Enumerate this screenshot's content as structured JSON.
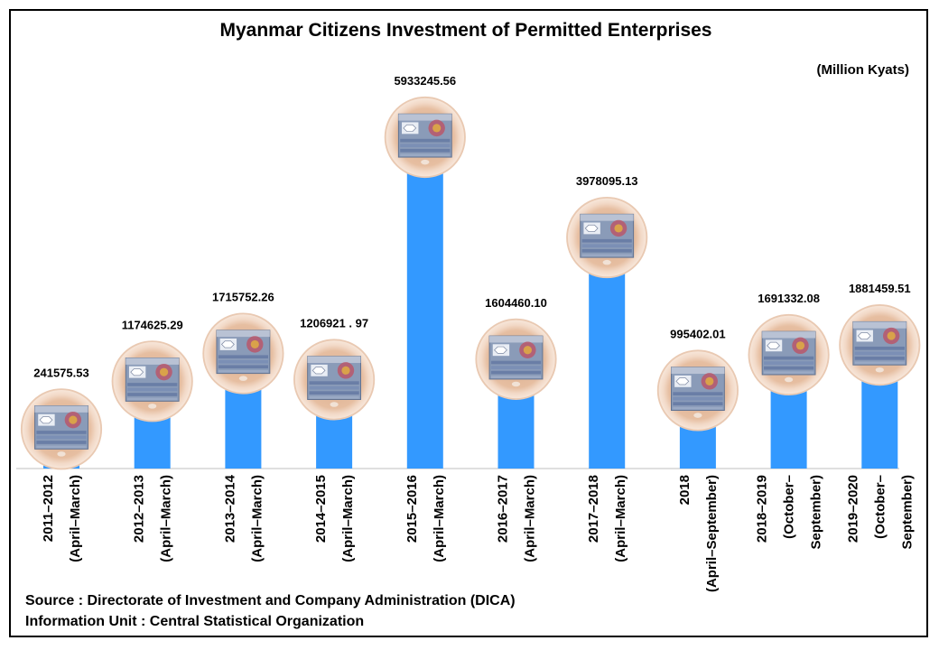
{
  "chart_data": {
    "type": "bar",
    "title": "Myanmar Citizens Investment of Permitted Enterprises",
    "unit_label": "(Million Kyats)",
    "categories": [
      [
        "2011–2012",
        "(April–March)"
      ],
      [
        "2012–2013",
        "(April–March)"
      ],
      [
        "2013–2014",
        "(April–March)"
      ],
      [
        "2014–2015",
        "(April–March)"
      ],
      [
        "2015–2016",
        "(April–March)"
      ],
      [
        "2016–2017",
        "(April–March)"
      ],
      [
        "2017–2018",
        "(April–March)"
      ],
      [
        "2018",
        "(April–September)"
      ],
      [
        "2018–2019",
        "(October–",
        "September)"
      ],
      [
        "2019–2020",
        "(October–",
        "September)"
      ]
    ],
    "values": [
      241575.53,
      1174625.29,
      1715752.26,
      1206921.97,
      5933245.56,
      1604460.1,
      3978095.13,
      995402.01,
      1691332.08,
      1881459.51
    ],
    "value_labels": [
      "241575.53",
      "1174625.29",
      "1715752.26",
      "1206921 . 97",
      "5933245.56",
      "1604460.10",
      "3978095.13",
      "995402.01",
      "1691332.08",
      "1881459.51"
    ],
    "ylim": [
      0,
      5933245.56
    ],
    "bar_color": "#3399ff",
    "marker_icon": "banknote-medallion-icon",
    "grid": false,
    "legend": "none"
  },
  "footer": {
    "source": "Source : Directorate of Investment and Company Administration (DICA)",
    "info": "Information Unit : Central Statistical Organization"
  }
}
